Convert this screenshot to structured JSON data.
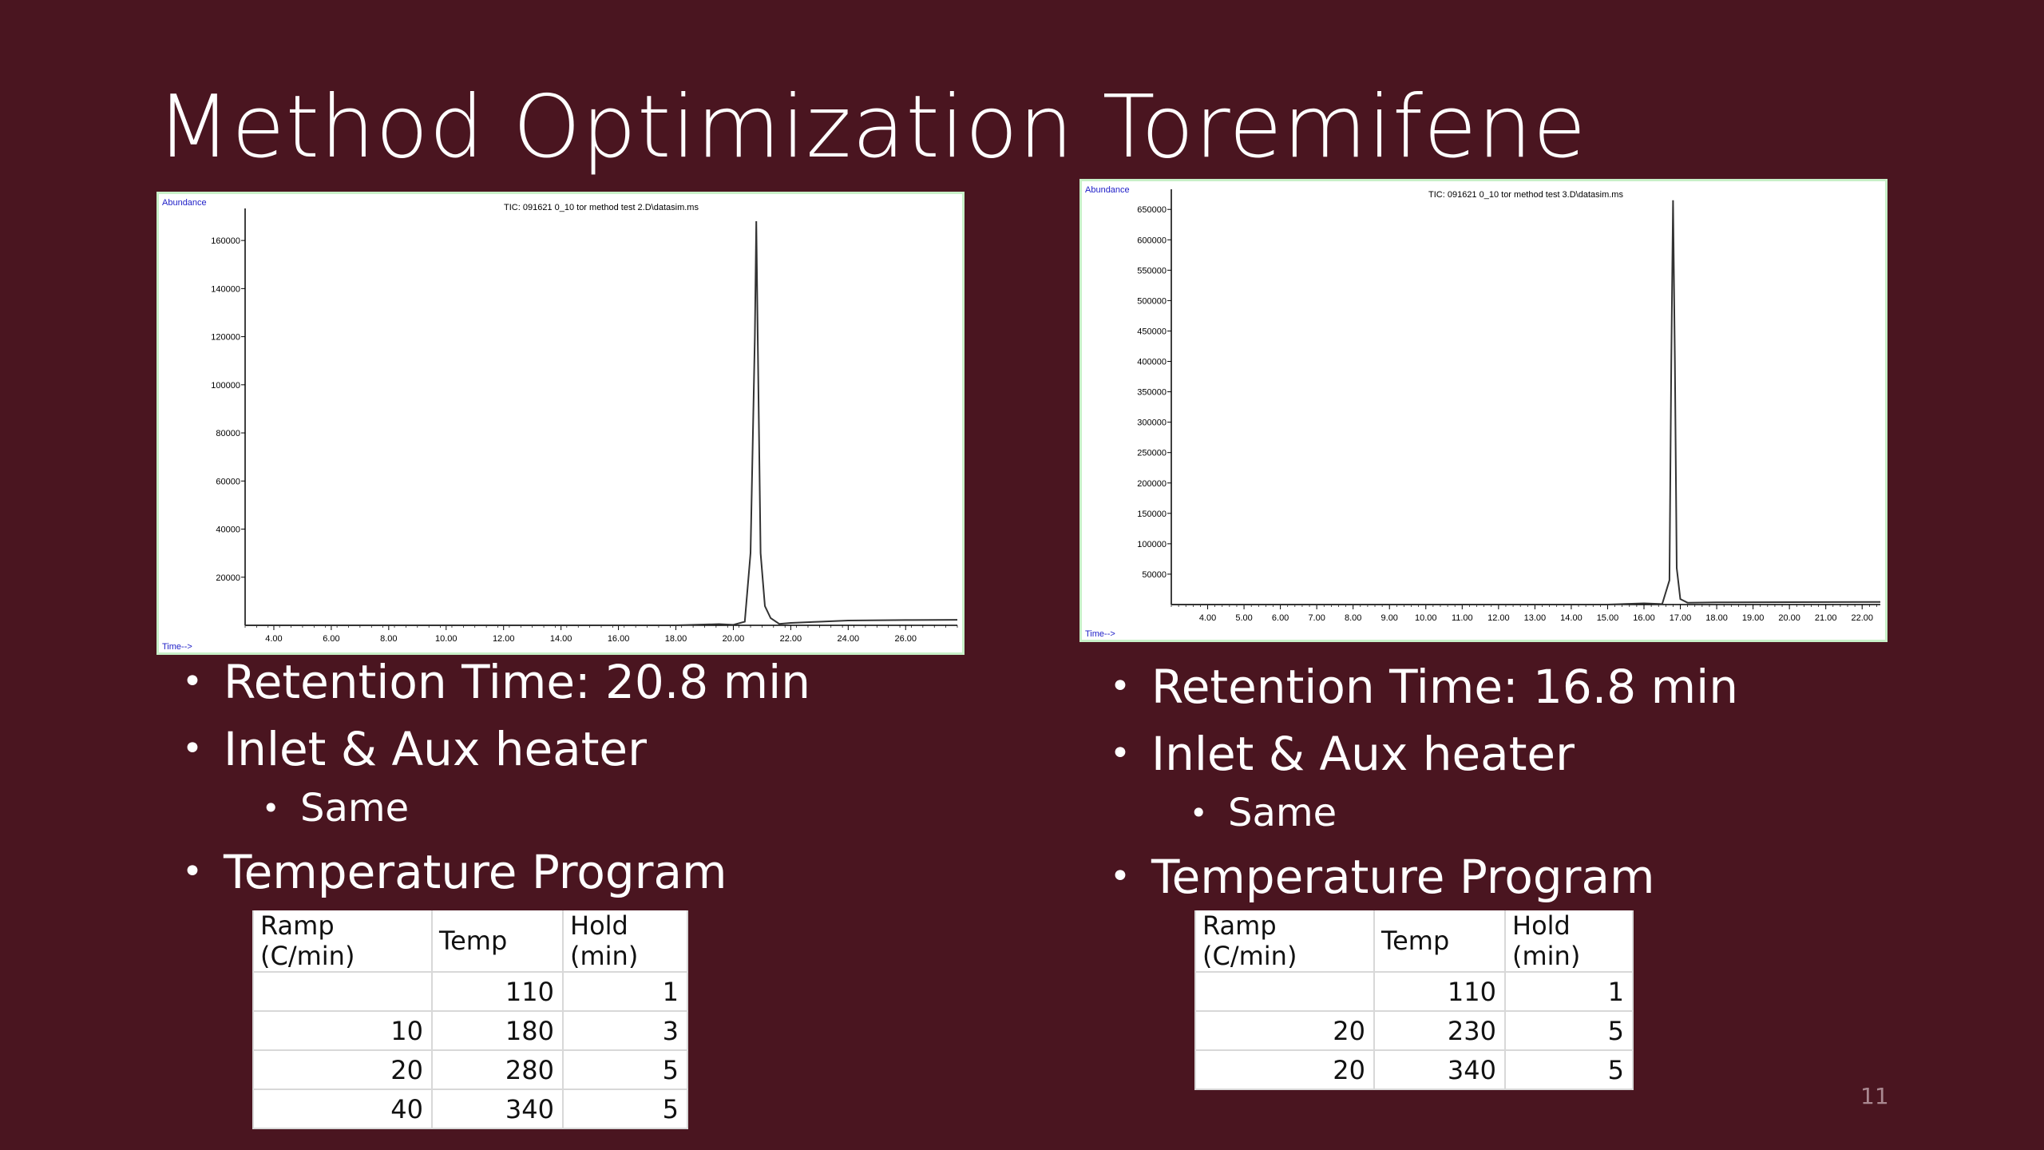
{
  "slide": {
    "title": "Method Optimization Toremifene",
    "page_number": "11"
  },
  "chart_data": [
    {
      "type": "line",
      "title": "TIC: 091621 0_10 tor method test 2.D\\datasim.ms",
      "ylabel": "Abundance",
      "xlabel": "Time-->",
      "xlim": [
        3.0,
        27.8
      ],
      "ylim": [
        0,
        170000
      ],
      "xticks": [
        "4.00",
        "6.00",
        "8.00",
        "10.00",
        "12.00",
        "14.00",
        "16.00",
        "18.00",
        "20.00",
        "22.00",
        "24.00",
        "26.00"
      ],
      "yticks": [
        "20000",
        "40000",
        "60000",
        "80000",
        "100000",
        "120000",
        "140000",
        "160000"
      ],
      "series": [
        {
          "x": [
            3.0,
            15.0,
            18.0,
            19.5,
            20.0,
            20.4,
            20.6,
            20.75,
            20.8,
            20.85,
            20.95,
            21.1,
            21.3,
            21.6,
            22.0,
            23.0,
            24.0,
            26.0,
            27.8
          ],
          "y": [
            0,
            0,
            0,
            500,
            200,
            1500,
            30000,
            120000,
            168000,
            120000,
            30000,
            8000,
            3000,
            600,
            1000,
            1500,
            2000,
            2200,
            2300
          ]
        }
      ]
    },
    {
      "type": "line",
      "title": "TIC: 091621 0_10 tor method test 3.D\\datasim.ms",
      "ylabel": "Abundance",
      "xlabel": "Time-->",
      "xlim": [
        3.0,
        22.5
      ],
      "ylim": [
        0,
        670000
      ],
      "xticks": [
        "4.00",
        "5.00",
        "6.00",
        "7.00",
        "8.00",
        "9.00",
        "10.00",
        "11.00",
        "12.00",
        "13.00",
        "14.00",
        "15.00",
        "16.00",
        "17.00",
        "18.00",
        "19.00",
        "20.00",
        "21.00",
        "22.00"
      ],
      "yticks": [
        "50000",
        "100000",
        "150000",
        "200000",
        "250000",
        "300000",
        "350000",
        "400000",
        "450000",
        "500000",
        "550000",
        "600000",
        "650000"
      ],
      "series": [
        {
          "x": [
            3.0,
            15.0,
            16.0,
            16.5,
            16.7,
            16.75,
            16.8,
            16.85,
            16.9,
            17.0,
            17.2,
            18.0,
            20.0,
            22.5
          ],
          "y": [
            0,
            0,
            2000,
            800,
            40000,
            400000,
            665000,
            400000,
            60000,
            9000,
            3000,
            3500,
            4000,
            4200
          ]
        }
      ]
    }
  ],
  "left": {
    "bullets": [
      {
        "text": "Retention Time: 20.8 min"
      },
      {
        "text": "Inlet & Aux heater",
        "sub": "Same"
      },
      {
        "text": "Temperature Program"
      }
    ],
    "table": {
      "headers": [
        "Ramp (C/min)",
        "Temp",
        "Hold (min)"
      ],
      "rows": [
        [
          "",
          "110",
          "1"
        ],
        [
          "10",
          "180",
          "3"
        ],
        [
          "20",
          "280",
          "5"
        ],
        [
          "40",
          "340",
          "5"
        ]
      ]
    }
  },
  "right": {
    "bullets": [
      {
        "text": "Retention Time: 16.8 min"
      },
      {
        "text": "Inlet & Aux heater",
        "sub": "Same"
      },
      {
        "text": "Temperature Program"
      }
    ],
    "table": {
      "headers": [
        "Ramp (C/min)",
        "Temp",
        "Hold (min)"
      ],
      "rows": [
        [
          "",
          "110",
          "1"
        ],
        [
          "20",
          "230",
          "5"
        ],
        [
          "20",
          "340",
          "5"
        ]
      ]
    }
  }
}
